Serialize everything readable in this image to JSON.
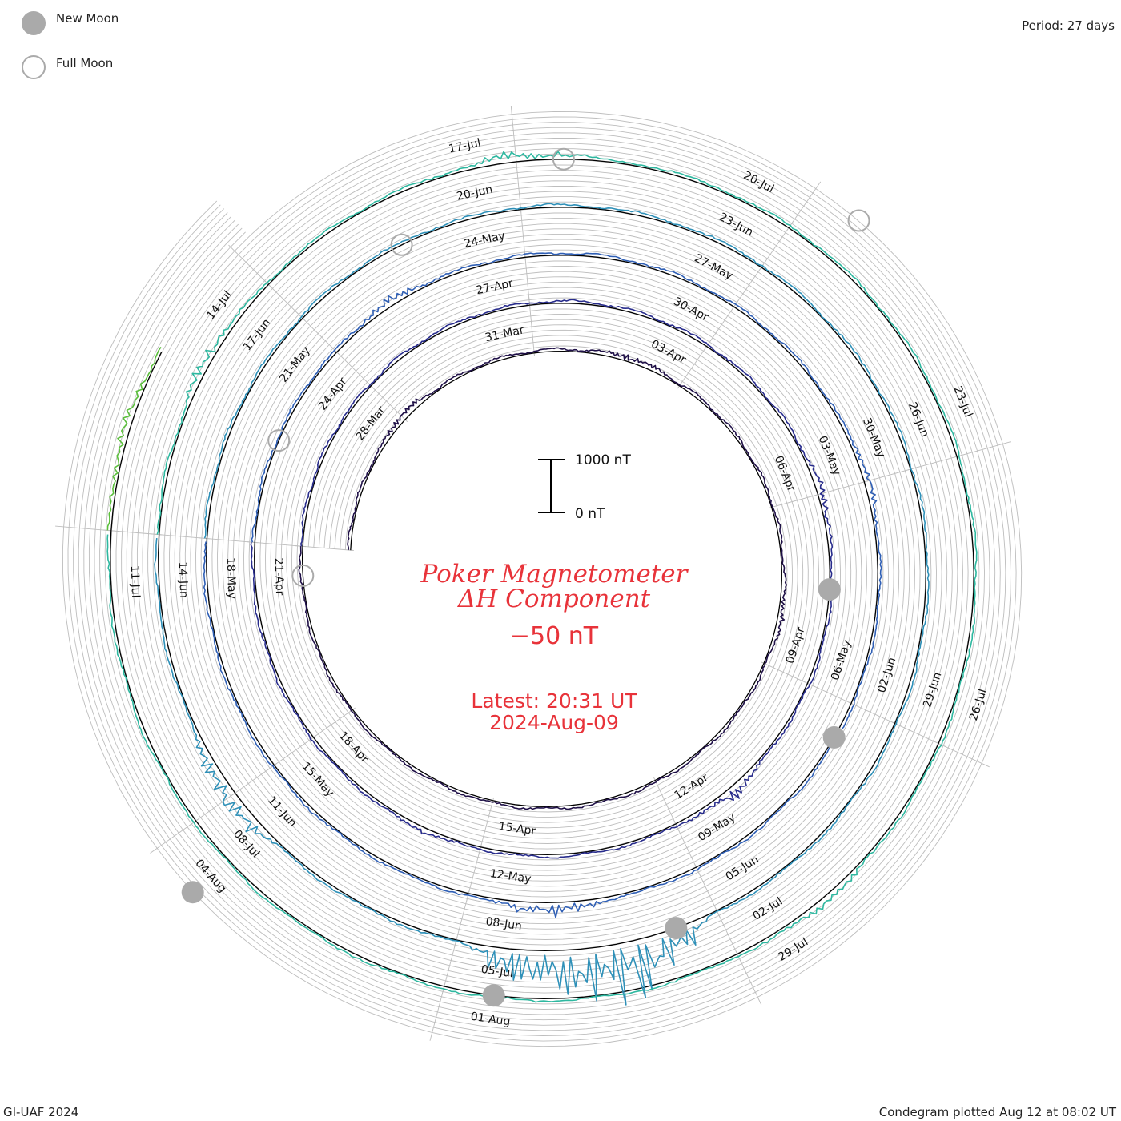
{
  "legend": {
    "new_moon": "New Moon",
    "full_moon": "Full Moon"
  },
  "period_label": "Period: 27 days",
  "footer": {
    "left": "GI-UAF 2024",
    "right": "Condegram plotted Aug 12 at 08:02 UT"
  },
  "scale_bar": {
    "top_label": "1000 nT",
    "bottom_label": "0 nT"
  },
  "center": {
    "title_line1": "Poker Magnetometer",
    "title_line2": "ΔH Component",
    "value": "−50 nT",
    "latest_line1": "Latest: 20:31 UT",
    "latest_line2": "2024-Aug-09"
  },
  "colors": {
    "text_red": "#e8333a",
    "grid": "#bdbdbd",
    "baseline": "#000000",
    "moon_fill": "#aaaaaa"
  },
  "chart_data": {
    "type": "line",
    "layout": "spiral condegram",
    "period_days": 27,
    "start_date": "2024-03-26",
    "end_date": "2024-08-09",
    "units": "nT",
    "scale_nT": [
      0,
      1000
    ],
    "date_labels": [
      "28-Mar",
      "31-Mar",
      "03-Apr",
      "06-Apr",
      "09-Apr",
      "12-Apr",
      "15-Apr",
      "18-Apr",
      "21-Apr",
      "24-Apr",
      "27-Apr",
      "30-Apr",
      "03-May",
      "06-May",
      "09-May",
      "12-May",
      "15-May",
      "18-May",
      "21-May",
      "24-May",
      "27-May",
      "30-May",
      "02-Jun",
      "05-Jun",
      "08-Jun",
      "11-Jun",
      "14-Jun",
      "17-Jun",
      "20-Jun",
      "23-Jun",
      "26-Jun",
      "29-Jun",
      "02-Jul",
      "05-Jul",
      "08-Jul",
      "11-Jul",
      "14-Jul",
      "17-Jul",
      "20-Jul",
      "23-Jul",
      "26-Jul",
      "29-Jul",
      "01-Aug",
      "04-Aug"
    ],
    "series": [
      {
        "color": "#1f1047",
        "disturbances": [
          {
            "day": 3,
            "nT": 160
          },
          {
            "day": 8,
            "nT": 110
          },
          {
            "day": 14,
            "nT": 90
          }
        ]
      },
      {
        "color": "#282c8c",
        "disturbances": [
          {
            "day": 12,
            "nT": 130
          },
          {
            "day": 17,
            "nT": 190
          },
          {
            "day": 22,
            "nT": 80
          }
        ]
      },
      {
        "color": "#2f5fb5",
        "disturbances": [
          {
            "day": 4,
            "nT": 150
          },
          {
            "day": 12,
            "nT": 140
          },
          {
            "day": 20,
            "nT": 260
          }
        ]
      },
      {
        "color": "#2e90b8",
        "disturbances": [
          {
            "day": 19,
            "nT": 1200
          },
          {
            "day": 20,
            "nT": 900
          },
          {
            "day": 24,
            "nT": 380
          }
        ]
      },
      {
        "color": "#2eb8a0",
        "disturbances": [
          {
            "day": 2,
            "nT": 180
          },
          {
            "day": 6,
            "nT": 170
          },
          {
            "day": 17,
            "nT": 140
          }
        ]
      },
      {
        "color": "#5bbf3c",
        "disturbances": [
          {
            "day": 1,
            "nT": 150
          },
          {
            "day": 5,
            "nT": 120
          },
          {
            "day": 23,
            "nT": 110
          }
        ]
      },
      {
        "color": "#9dc41e",
        "disturbances": [
          {
            "day": 12,
            "nT": 220
          },
          {
            "day": 14,
            "nT": 150
          }
        ]
      },
      {
        "color": "#c9a01a",
        "disturbances": [
          {
            "day": 6,
            "nT": 120
          },
          {
            "day": 14,
            "nT": 180
          }
        ]
      },
      {
        "color": "#c86a12",
        "disturbances": [
          {
            "day": 3,
            "nT": 160
          },
          {
            "day": 10,
            "nT": 260
          },
          {
            "day": 16,
            "nT": 230
          }
        ]
      },
      {
        "color": "#c0300f",
        "disturbances": [
          {
            "day": 19,
            "nT": 320
          },
          {
            "day": 26,
            "nT": 150
          }
        ]
      }
    ],
    "moon_phases": [
      {
        "phase": "full",
        "date": "2024-03-25"
      },
      {
        "phase": "new",
        "date": "2024-04-08"
      },
      {
        "phase": "full",
        "date": "2024-04-23"
      },
      {
        "phase": "new",
        "date": "2024-05-07"
      },
      {
        "phase": "full",
        "date": "2024-05-23"
      },
      {
        "phase": "new",
        "date": "2024-06-06"
      },
      {
        "phase": "full",
        "date": "2024-06-21"
      },
      {
        "phase": "new",
        "date": "2024-07-05"
      },
      {
        "phase": "full",
        "date": "2024-07-21"
      },
      {
        "phase": "new",
        "date": "2024-08-04"
      }
    ]
  }
}
